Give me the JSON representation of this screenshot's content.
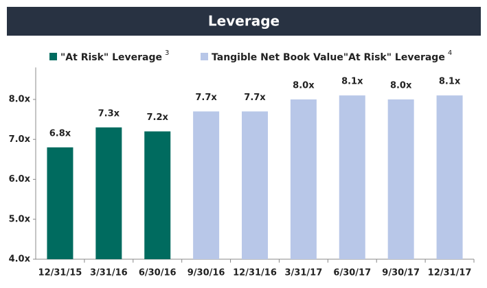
{
  "chart_data": {
    "type": "bar",
    "title": "Leverage",
    "categories": [
      "12/31/15",
      "3/31/16",
      "6/30/16",
      "9/30/16",
      "12/31/16",
      "3/31/17",
      "6/30/17",
      "9/30/17",
      "12/31/17"
    ],
    "series": [
      {
        "name": "\"At Risk\" Leverage",
        "superscript": "3",
        "color": "#006b5f",
        "values": [
          6.8,
          7.3,
          7.2,
          null,
          null,
          null,
          null,
          null,
          null
        ],
        "value_labels": [
          "6.8x",
          "7.3x",
          "7.2x",
          null,
          null,
          null,
          null,
          null,
          null
        ]
      },
      {
        "name": "Tangible Net Book Value\"At Risk\" Leverage",
        "superscript": "4",
        "color": "#b8c7e8",
        "values": [
          null,
          null,
          null,
          7.7,
          7.7,
          8.0,
          8.1,
          8.0,
          8.1
        ],
        "value_labels": [
          null,
          null,
          null,
          "7.7x",
          "7.7x",
          "8.0x",
          "8.1x",
          "8.0x",
          "8.1x"
        ]
      }
    ],
    "ylim": [
      4,
      8.8
    ],
    "yticks": [
      {
        "value": 4,
        "label": "4.0x"
      },
      {
        "value": 5,
        "label": "5.0x"
      },
      {
        "value": 6,
        "label": "6.0x"
      },
      {
        "value": 7,
        "label": "7.0x"
      },
      {
        "value": 8,
        "label": "8.0x"
      }
    ],
    "grid": false
  }
}
